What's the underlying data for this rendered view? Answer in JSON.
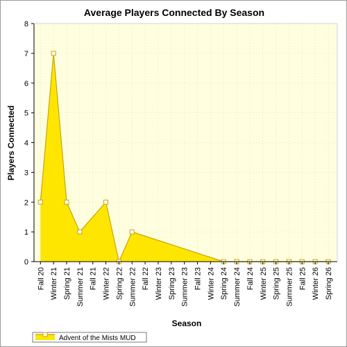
{
  "chart_data": {
    "type": "area",
    "title": "Average Players Connected By Season",
    "xlabel": "Season",
    "ylabel": "Players Connected",
    "ylim": [
      0,
      8
    ],
    "yticks": [
      "0",
      "1",
      "2",
      "3",
      "4",
      "5",
      "6",
      "7",
      "8"
    ],
    "categories": [
      "Fall 20",
      "Winter 21",
      "Spring 21",
      "Summer 21",
      "Fall 21",
      "Winter 22",
      "Spring 22",
      "Summer 22",
      "Fall 22",
      "Winter 23",
      "Spring 23",
      "Summer 23",
      "Fall 23",
      "Winter 24",
      "Spring 24",
      "Summer 24",
      "Fall 24",
      "Winter 25",
      "Spring 25",
      "Summer 25",
      "Fall 25",
      "Winter 26",
      "Spring 26"
    ],
    "series": [
      {
        "name": "Advent of the Mists MUD",
        "values": [
          2,
          7,
          2,
          1,
          null,
          2,
          0,
          1,
          null,
          null,
          null,
          null,
          null,
          null,
          0,
          0,
          0,
          0,
          0,
          0,
          0,
          0,
          0
        ]
      }
    ],
    "grid": true,
    "legend_position": "bottom-left",
    "colors": {
      "fill": "#ffe600",
      "line": "#c8a400",
      "marker_stroke": "#c8a400",
      "marker_fill": "#ffffff",
      "plot_bg": "#ffffe0",
      "grid": "#c8c8b4"
    }
  }
}
